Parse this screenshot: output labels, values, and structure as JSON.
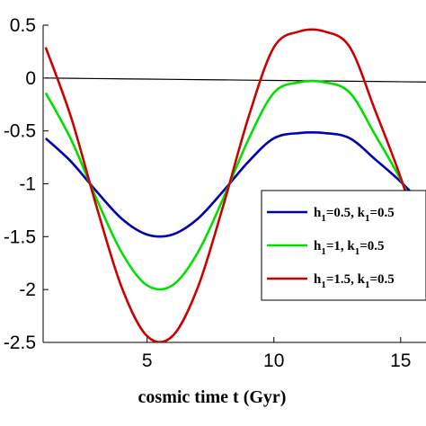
{
  "chart_data": {
    "type": "line",
    "title": "",
    "xlabel": "cosmic time t (Gyr)",
    "ylabel": "",
    "xlim": [
      0.9,
      16
    ],
    "ylim": [
      -2.5,
      0.5
    ],
    "xticks": [
      5,
      10,
      15
    ],
    "yticks": [
      0.5,
      0,
      -0.5,
      -1,
      -1.5,
      -2,
      -2.5
    ],
    "xtick_labels": [
      "5",
      "10",
      "15"
    ],
    "ytick_labels": [
      "0.5",
      "0",
      "-0.5",
      "-1",
      "-1.5",
      "-2",
      "-2.5"
    ],
    "grid": false,
    "legend_position": "right-center",
    "x": [
      1,
      2,
      3,
      4,
      5,
      6,
      7,
      8,
      9,
      10,
      11,
      12,
      13,
      14,
      15,
      16
    ],
    "series": [
      {
        "legend_parts": [
          "h",
          "1",
          "=0.5, k",
          "1",
          "=0.5"
        ],
        "color": "#0000b0",
        "values": [
          -0.57,
          -0.79,
          -1.07,
          -1.33,
          -1.48,
          -1.48,
          -1.33,
          -1.07,
          -0.79,
          -0.57,
          -0.52,
          -0.52,
          -0.57,
          -0.77,
          -0.98,
          -1.23
        ]
      },
      {
        "legend_parts": [
          "h",
          "1",
          "=1, k",
          "1",
          "=0.5"
        ],
        "color": "#00e000",
        "values": [
          -0.14,
          -0.58,
          -1.14,
          -1.65,
          -1.96,
          -1.96,
          -1.65,
          -1.14,
          -0.58,
          -0.14,
          -0.04,
          -0.04,
          -0.14,
          -0.54,
          -0.96,
          -1.46
        ]
      },
      {
        "legend_parts": [
          "h",
          "1",
          "=1.5, k",
          "1",
          "=0.5"
        ],
        "color": "#cc0000",
        "values": [
          0.29,
          -0.37,
          -1.21,
          -1.98,
          -2.44,
          -2.44,
          -1.98,
          -1.21,
          -0.37,
          0.29,
          0.44,
          0.44,
          0.29,
          -0.31,
          -0.94,
          -1.69
        ]
      },
      {
        "color": "#000000",
        "values": [
          0.0,
          -0.0025,
          -0.005,
          -0.0075,
          -0.01,
          -0.0125,
          -0.015,
          -0.0175,
          -0.02,
          -0.0225,
          -0.025,
          -0.0275,
          -0.03,
          -0.0325,
          -0.035,
          -0.0375
        ]
      }
    ]
  }
}
